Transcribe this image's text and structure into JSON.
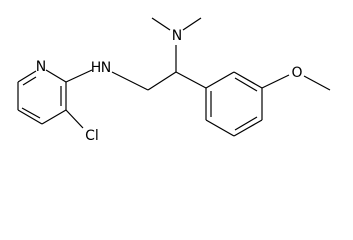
{
  "atoms": {
    "pyridine_n": "N",
    "amine_h": "H",
    "amine_n": "N",
    "chlorine": "Cl",
    "dimethyl_n": "N",
    "methoxy_o": "O"
  }
}
